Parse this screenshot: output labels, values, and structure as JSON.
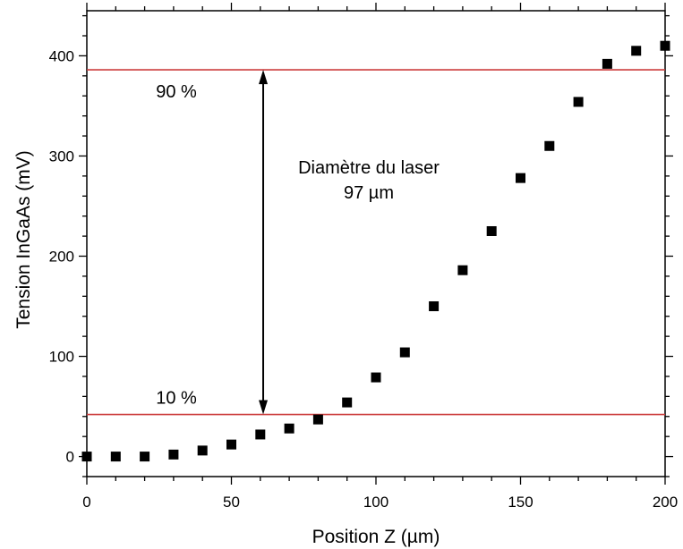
{
  "chart_data": {
    "type": "scatter",
    "xlabel": "Position Z (µm)",
    "ylabel": "Tension InGaAs (mV)",
    "xlim": [
      0,
      200
    ],
    "ylim": [
      -20,
      445
    ],
    "x_ticks": [
      0,
      50,
      100,
      150,
      200
    ],
    "y_ticks": [
      0,
      100,
      200,
      300,
      400
    ],
    "x": [
      0,
      10,
      20,
      30,
      40,
      50,
      60,
      70,
      80,
      90,
      100,
      110,
      120,
      130,
      140,
      150,
      160,
      170,
      180,
      190,
      200
    ],
    "y": [
      0,
      0,
      0,
      2,
      6,
      12,
      22,
      28,
      37,
      54,
      79,
      104,
      150,
      186,
      225,
      278,
      310,
      354,
      392,
      405,
      410
    ],
    "hlines": [
      {
        "label": "90 %",
        "y": 386
      },
      {
        "label": "10 %",
        "y": 42
      }
    ],
    "annotation": {
      "line1": "Diamètre du laser",
      "line2": "97 µm",
      "x": 61,
      "y_from": 42,
      "y_to": 386
    },
    "line_color": "#cc3b3b",
    "marker_color": "#000000",
    "grid": false,
    "legend": "none"
  }
}
